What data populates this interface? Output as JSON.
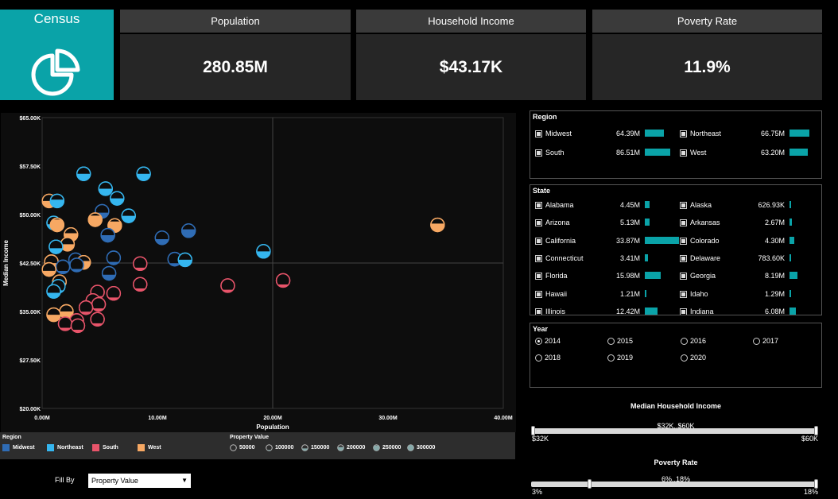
{
  "header": {
    "logo_title": "Census",
    "kpis": [
      {
        "label": "Population",
        "value": "280.85M"
      },
      {
        "label": "Household Income",
        "value": "$43.17K"
      },
      {
        "label": "Poverty Rate",
        "value": "11.9%"
      }
    ]
  },
  "chart_data": {
    "type": "scatter",
    "xlabel": "Population",
    "ylabel": "Median Income",
    "x_ticks": [
      "0.00M",
      "10.00M",
      "20.00M",
      "30.00M",
      "40.00M"
    ],
    "y_ticks": [
      "$20.00K",
      "$27.50K",
      "$35.00K",
      "$42.50K",
      "$50.00K",
      "$57.50K",
      "$65.00K"
    ],
    "xlim": [
      0,
      40
    ],
    "ylim": [
      20,
      65
    ],
    "ref_lines": {
      "x": 20,
      "y": 42.5
    },
    "colors": {
      "Midwest": "#2f6cb5",
      "Northeast": "#35b6ef",
      "South": "#e8546a",
      "West": "#f7a863"
    },
    "points": [
      {
        "x": 0.6,
        "y": 52.1,
        "r": "West",
        "f": 0.5
      },
      {
        "x": 1.3,
        "y": 52.1,
        "r": "Northeast",
        "f": 0.6
      },
      {
        "x": 3.6,
        "y": 56.3,
        "r": "Northeast",
        "f": 0.5
      },
      {
        "x": 8.8,
        "y": 56.3,
        "r": "Northeast",
        "f": 0.5
      },
      {
        "x": 5.5,
        "y": 54.0,
        "r": "Northeast",
        "f": 0.5
      },
      {
        "x": 6.5,
        "y": 52.5,
        "r": "Northeast",
        "f": 0.5
      },
      {
        "x": 5.2,
        "y": 50.5,
        "r": "Midwest",
        "f": 0.4
      },
      {
        "x": 7.5,
        "y": 49.8,
        "r": "Northeast",
        "f": 0.5
      },
      {
        "x": 1.0,
        "y": 48.7,
        "r": "Northeast",
        "f": 0.4
      },
      {
        "x": 1.3,
        "y": 48.4,
        "r": "West",
        "f": 0.9
      },
      {
        "x": 6.3,
        "y": 48.3,
        "r": "West",
        "f": 0.8
      },
      {
        "x": 4.6,
        "y": 49.2,
        "r": "West",
        "f": 0.8
      },
      {
        "x": 2.5,
        "y": 46.9,
        "r": "West",
        "f": 0.6
      },
      {
        "x": 5.7,
        "y": 46.8,
        "r": "Midwest",
        "f": 0.5
      },
      {
        "x": 12.7,
        "y": 47.5,
        "r": "Midwest",
        "f": 0.6
      },
      {
        "x": 10.4,
        "y": 46.4,
        "r": "Midwest",
        "f": 0.4
      },
      {
        "x": 2.2,
        "y": 45.4,
        "r": "West",
        "f": 0.5
      },
      {
        "x": 1.2,
        "y": 45.0,
        "r": "Northeast",
        "f": 0.4
      },
      {
        "x": 19.2,
        "y": 44.3,
        "r": "Northeast",
        "f": 0.5
      },
      {
        "x": 6.2,
        "y": 43.3,
        "r": "Midwest",
        "f": 0.2
      },
      {
        "x": 2.9,
        "y": 43.0,
        "r": "Midwest",
        "f": 0.2
      },
      {
        "x": 11.5,
        "y": 43.1,
        "r": "Midwest",
        "f": 0.2
      },
      {
        "x": 12.4,
        "y": 43.0,
        "r": "Northeast",
        "f": 0.5
      },
      {
        "x": 3.6,
        "y": 42.6,
        "r": "West",
        "f": 0.6
      },
      {
        "x": 8.5,
        "y": 42.4,
        "r": "South",
        "f": 0.2
      },
      {
        "x": 0.8,
        "y": 42.7,
        "r": "West",
        "f": 0.4
      },
      {
        "x": 3.0,
        "y": 42.2,
        "r": "Midwest",
        "f": 0.2
      },
      {
        "x": 1.8,
        "y": 41.9,
        "r": "Midwest",
        "f": 0.2
      },
      {
        "x": 0.6,
        "y": 41.5,
        "r": "West",
        "f": 0.4
      },
      {
        "x": 5.8,
        "y": 40.9,
        "r": "Midwest",
        "f": 0.4
      },
      {
        "x": 1.5,
        "y": 39.6,
        "r": "West",
        "f": 0.4
      },
      {
        "x": 1.4,
        "y": 38.9,
        "r": "Northeast",
        "f": 0.2
      },
      {
        "x": 8.5,
        "y": 39.2,
        "r": "South",
        "f": 0.2
      },
      {
        "x": 20.9,
        "y": 39.8,
        "r": "South",
        "f": 0.2
      },
      {
        "x": 16.1,
        "y": 39.0,
        "r": "South",
        "f": 0.2
      },
      {
        "x": 1.0,
        "y": 38.1,
        "r": "Northeast",
        "f": 0.4
      },
      {
        "x": 4.8,
        "y": 38.0,
        "r": "South",
        "f": 0.2
      },
      {
        "x": 6.2,
        "y": 37.8,
        "r": "South",
        "f": 0.2
      },
      {
        "x": 4.4,
        "y": 36.7,
        "r": "South",
        "f": 0.2
      },
      {
        "x": 4.9,
        "y": 36.1,
        "r": "South",
        "f": 0.2
      },
      {
        "x": 3.8,
        "y": 35.6,
        "r": "South",
        "f": 0.2
      },
      {
        "x": 2.1,
        "y": 35.0,
        "r": "West",
        "f": 0.5
      },
      {
        "x": 1.0,
        "y": 34.5,
        "r": "West",
        "f": 0.5
      },
      {
        "x": 4.8,
        "y": 33.8,
        "r": "South",
        "f": 0.2
      },
      {
        "x": 3.0,
        "y": 33.6,
        "r": "South",
        "f": 0.2
      },
      {
        "x": 2.0,
        "y": 33.1,
        "r": "South",
        "f": 0.2
      },
      {
        "x": 3.1,
        "y": 32.8,
        "r": "South",
        "f": 0.2
      },
      {
        "x": 34.3,
        "y": 48.4,
        "r": "West",
        "f": 0.6
      }
    ]
  },
  "legend": {
    "region_title": "Region",
    "regions": [
      {
        "name": "Midwest",
        "color": "#2f6cb5"
      },
      {
        "name": "Northeast",
        "color": "#35b6ef"
      },
      {
        "name": "South",
        "color": "#e8546a"
      },
      {
        "name": "West",
        "color": "#f7a863"
      }
    ],
    "property_title": "Property Value",
    "property_values": [
      {
        "label": "50000",
        "fill": 0
      },
      {
        "label": "100000",
        "fill": 0.2
      },
      {
        "label": "150000",
        "fill": 0.4
      },
      {
        "label": "200000",
        "fill": 0.6
      },
      {
        "label": "250000",
        "fill": 0.8
      },
      {
        "label": "300000",
        "fill": 1
      }
    ]
  },
  "fill_by": {
    "label": "Fill By",
    "value": "Property Value"
  },
  "region_panel": {
    "title": "Region",
    "items": [
      {
        "name": "Midwest",
        "value": "64.39M",
        "ratio": 0.74
      },
      {
        "name": "Northeast",
        "value": "66.75M",
        "ratio": 0.77
      },
      {
        "name": "South",
        "value": "86.51M",
        "ratio": 1.0
      },
      {
        "name": "West",
        "value": "63.20M",
        "ratio": 0.73
      }
    ]
  },
  "state_panel": {
    "title": "State",
    "items": [
      {
        "name": "Alabama",
        "value": "4.45M",
        "ratio": 0.13
      },
      {
        "name": "Alaska",
        "value": "626.93K",
        "ratio": 0.02
      },
      {
        "name": "Arizona",
        "value": "5.13M",
        "ratio": 0.15
      },
      {
        "name": "Arkansas",
        "value": "2.67M",
        "ratio": 0.08
      },
      {
        "name": "California",
        "value": "33.87M",
        "ratio": 1.0
      },
      {
        "name": "Colorado",
        "value": "4.30M",
        "ratio": 0.13
      },
      {
        "name": "Connecticut",
        "value": "3.41M",
        "ratio": 0.1
      },
      {
        "name": "Delaware",
        "value": "783.60K",
        "ratio": 0.02
      },
      {
        "name": "Florida",
        "value": "15.98M",
        "ratio": 0.47
      },
      {
        "name": "Georgia",
        "value": "8.19M",
        "ratio": 0.24
      },
      {
        "name": "Hawaii",
        "value": "1.21M",
        "ratio": 0.04
      },
      {
        "name": "Idaho",
        "value": "1.29M",
        "ratio": 0.04
      },
      {
        "name": "Illinois",
        "value": "12.42M",
        "ratio": 0.37
      },
      {
        "name": "Indiana",
        "value": "6.08M",
        "ratio": 0.18
      }
    ]
  },
  "year_panel": {
    "title": "Year",
    "selected": "2014",
    "years": [
      "2014",
      "2015",
      "2016",
      "2017",
      "2018",
      "2019",
      "2020"
    ]
  },
  "income_slider": {
    "title": "Median Household Income",
    "range_label": "$32K..$60K",
    "min_label": "$32K",
    "max_label": "$60K",
    "low": 0,
    "high": 1
  },
  "poverty_slider": {
    "title": "Poverty Rate",
    "range_label": "6%..18%",
    "min_label": "3%",
    "max_label": "18%",
    "low": 0.2,
    "high": 1
  }
}
